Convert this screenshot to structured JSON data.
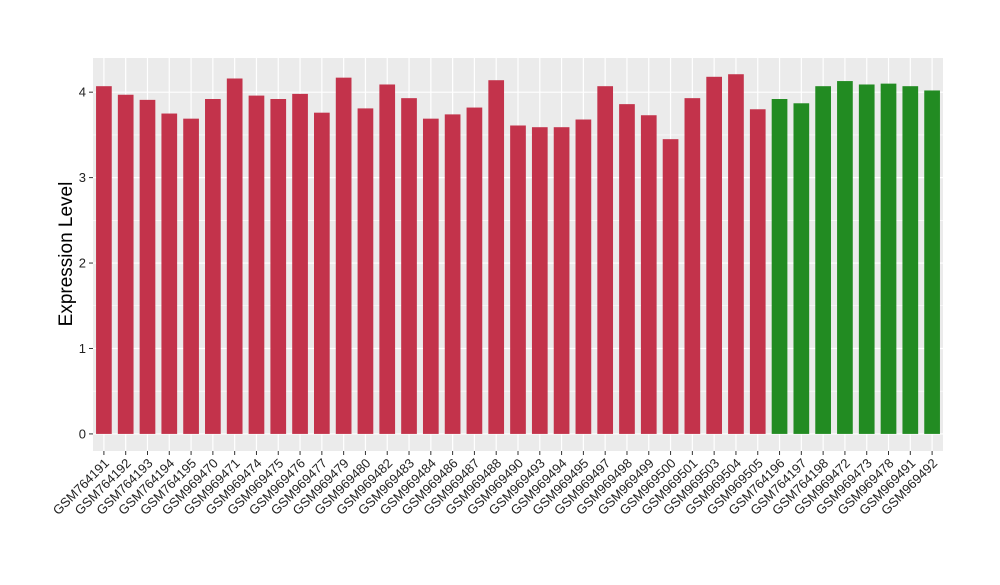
{
  "chart_data": {
    "type": "bar",
    "title": "",
    "xlabel": "",
    "ylabel": "Expression Level",
    "ylim": [
      -0.2,
      4.4
    ],
    "yticks": [
      0,
      1,
      2,
      3,
      4
    ],
    "grid": true,
    "legend": "none",
    "colors": {
      "group1": "#c3334b",
      "group2": "#228b22",
      "panel": "#ebebeb",
      "grid": "#ffffff"
    },
    "categories": [
      "GSM764191",
      "GSM764192",
      "GSM764193",
      "GSM764194",
      "GSM764195",
      "GSM969470",
      "GSM969471",
      "GSM969474",
      "GSM969475",
      "GSM969476",
      "GSM969477",
      "GSM969479",
      "GSM969480",
      "GSM969482",
      "GSM969483",
      "GSM969484",
      "GSM969486",
      "GSM969487",
      "GSM969488",
      "GSM969490",
      "GSM969493",
      "GSM969494",
      "GSM969495",
      "GSM969497",
      "GSM969498",
      "GSM969499",
      "GSM969500",
      "GSM969501",
      "GSM969503",
      "GSM969504",
      "GSM969505",
      "GSM764196",
      "GSM764197",
      "GSM764198",
      "GSM969472",
      "GSM969473",
      "GSM969478",
      "GSM969491",
      "GSM969492"
    ],
    "values": [
      4.07,
      3.97,
      3.91,
      3.75,
      3.69,
      3.92,
      4.16,
      3.96,
      3.92,
      3.98,
      3.76,
      4.17,
      3.81,
      4.09,
      3.93,
      3.69,
      3.74,
      3.82,
      4.14,
      3.61,
      3.59,
      3.59,
      3.68,
      4.07,
      3.86,
      3.73,
      3.45,
      3.93,
      4.18,
      4.21,
      3.8,
      3.92,
      3.87,
      4.07,
      4.13,
      4.09,
      4.1,
      4.07,
      4.02
    ],
    "groups": [
      1,
      1,
      1,
      1,
      1,
      1,
      1,
      1,
      1,
      1,
      1,
      1,
      1,
      1,
      1,
      1,
      1,
      1,
      1,
      1,
      1,
      1,
      1,
      1,
      1,
      1,
      1,
      1,
      1,
      1,
      1,
      2,
      2,
      2,
      2,
      2,
      2,
      2,
      2
    ]
  }
}
